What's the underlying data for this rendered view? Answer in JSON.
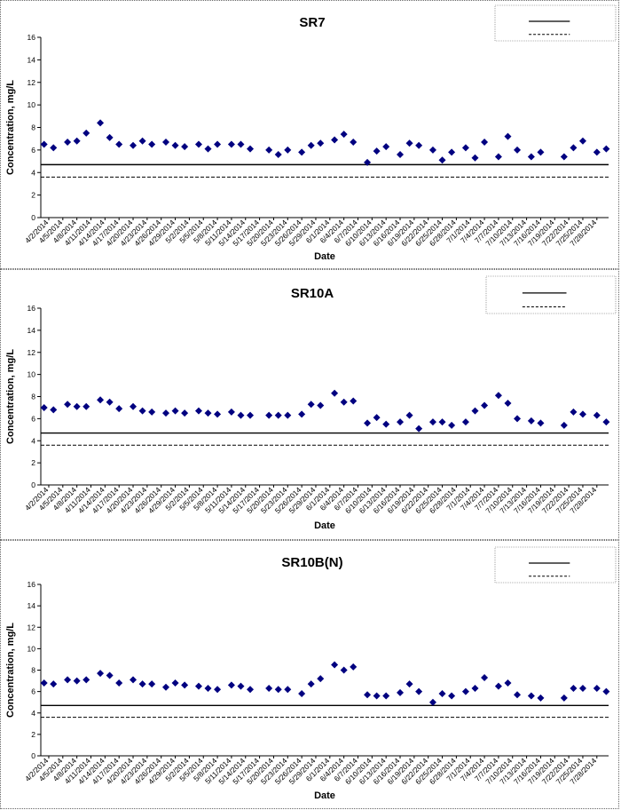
{
  "x_dates": [
    "4/2/2014",
    "4/5/2014",
    "4/8/2014",
    "4/11/2014",
    "4/14/2014",
    "4/17/2014",
    "4/20/2014",
    "4/23/2014",
    "4/26/2014",
    "4/29/2014",
    "5/2/2014",
    "5/5/2014",
    "5/8/2014",
    "5/11/2014",
    "5/14/2014",
    "5/17/2014",
    "5/20/2014",
    "5/23/2014",
    "5/26/2014",
    "5/29/2014",
    "6/1/2014",
    "6/4/2014",
    "6/7/2014",
    "6/10/2014",
    "6/13/2014",
    "6/16/2014",
    "6/19/2014",
    "6/22/2014",
    "6/25/2014",
    "6/28/2014",
    "7/1/2014",
    "7/4/2014",
    "7/7/2014",
    "7/10/2014",
    "7/13/2014",
    "7/16/2014",
    "7/19/2014",
    "7/22/2014",
    "7/25/2014",
    "7/28/2014"
  ],
  "chart_data": [
    {
      "type": "scatter",
      "title": "SR7",
      "xlabel": "Date",
      "ylabel": "Concentration, mg/L",
      "ylim": [
        0,
        16
      ],
      "yticks": [
        0,
        2,
        4,
        6,
        8,
        10,
        12,
        14,
        16
      ],
      "reference_lines": [
        {
          "style": "solid",
          "y": 4.7
        },
        {
          "style": "dashed",
          "y": 3.6
        }
      ],
      "legend": {
        "placement": "top-right"
      },
      "marker_color": "#000080",
      "points": [
        [
          "4/1/2014",
          6.5
        ],
        [
          "4/3/2014",
          6.2
        ],
        [
          "4/6/2014",
          6.7
        ],
        [
          "4/8/2014",
          6.8
        ],
        [
          "4/10/2014",
          7.5
        ],
        [
          "4/13/2014",
          8.4
        ],
        [
          "4/15/2014",
          7.1
        ],
        [
          "4/17/2014",
          6.5
        ],
        [
          "4/20/2014",
          6.4
        ],
        [
          "4/22/2014",
          6.8
        ],
        [
          "4/24/2014",
          6.5
        ],
        [
          "4/27/2014",
          6.7
        ],
        [
          "4/29/2014",
          6.4
        ],
        [
          "5/1/2014",
          6.3
        ],
        [
          "5/4/2014",
          6.5
        ],
        [
          "5/6/2014",
          6.1
        ],
        [
          "5/8/2014",
          6.5
        ],
        [
          "5/11/2014",
          6.5
        ],
        [
          "5/13/2014",
          6.5
        ],
        [
          "5/15/2014",
          6.1
        ],
        [
          "5/19/2014",
          6.0
        ],
        [
          "5/21/2014",
          5.6
        ],
        [
          "5/23/2014",
          6.0
        ],
        [
          "5/26/2014",
          5.8
        ],
        [
          "5/28/2014",
          6.4
        ],
        [
          "5/30/2014",
          6.6
        ],
        [
          "6/2/2014",
          6.9
        ],
        [
          "6/4/2014",
          7.4
        ],
        [
          "6/6/2014",
          6.7
        ],
        [
          "6/9/2014",
          4.9
        ],
        [
          "6/11/2014",
          5.9
        ],
        [
          "6/13/2014",
          6.3
        ],
        [
          "6/16/2014",
          5.6
        ],
        [
          "6/18/2014",
          6.6
        ],
        [
          "6/20/2014",
          6.4
        ],
        [
          "6/23/2014",
          6.0
        ],
        [
          "6/25/2014",
          5.1
        ],
        [
          "6/27/2014",
          5.8
        ],
        [
          "6/30/2014",
          6.2
        ],
        [
          "7/2/2014",
          5.3
        ],
        [
          "7/4/2014",
          6.7
        ],
        [
          "7/7/2014",
          5.4
        ],
        [
          "7/9/2014",
          7.2
        ],
        [
          "7/11/2014",
          6.0
        ],
        [
          "7/14/2014",
          5.4
        ],
        [
          "7/16/2014",
          5.8
        ],
        [
          "7/21/2014",
          5.4
        ],
        [
          "7/23/2014",
          6.2
        ],
        [
          "7/25/2014",
          6.8
        ],
        [
          "7/28/2014",
          5.8
        ],
        [
          "7/30/2014",
          6.1
        ]
      ]
    },
    {
      "type": "scatter",
      "title": "SR10A",
      "xlabel": "Date",
      "ylabel": "Concentration, mg/L",
      "ylim": [
        0,
        16
      ],
      "yticks": [
        0,
        2,
        4,
        6,
        8,
        10,
        12,
        14,
        16
      ],
      "reference_lines": [
        {
          "style": "solid",
          "y": 4.7
        },
        {
          "style": "dashed",
          "y": 3.6
        }
      ],
      "legend": {
        "placement": "top-right"
      },
      "marker_color": "#000080",
      "points": [
        [
          "4/1/2014",
          7.0
        ],
        [
          "4/3/2014",
          6.8
        ],
        [
          "4/6/2014",
          7.3
        ],
        [
          "4/8/2014",
          7.1
        ],
        [
          "4/10/2014",
          7.1
        ],
        [
          "4/13/2014",
          7.7
        ],
        [
          "4/15/2014",
          7.5
        ],
        [
          "4/17/2014",
          6.9
        ],
        [
          "4/20/2014",
          7.1
        ],
        [
          "4/22/2014",
          6.7
        ],
        [
          "4/24/2014",
          6.6
        ],
        [
          "4/27/2014",
          6.5
        ],
        [
          "4/29/2014",
          6.7
        ],
        [
          "5/1/2014",
          6.5
        ],
        [
          "5/4/2014",
          6.7
        ],
        [
          "5/6/2014",
          6.5
        ],
        [
          "5/8/2014",
          6.4
        ],
        [
          "5/11/2014",
          6.6
        ],
        [
          "5/13/2014",
          6.3
        ],
        [
          "5/15/2014",
          6.3
        ],
        [
          "5/19/2014",
          6.3
        ],
        [
          "5/21/2014",
          6.3
        ],
        [
          "5/23/2014",
          6.3
        ],
        [
          "5/26/2014",
          6.4
        ],
        [
          "5/28/2014",
          7.3
        ],
        [
          "5/30/2014",
          7.2
        ],
        [
          "6/2/2014",
          8.3
        ],
        [
          "6/4/2014",
          7.5
        ],
        [
          "6/6/2014",
          7.6
        ],
        [
          "6/9/2014",
          5.6
        ],
        [
          "6/11/2014",
          6.1
        ],
        [
          "6/13/2014",
          5.5
        ],
        [
          "6/16/2014",
          5.7
        ],
        [
          "6/18/2014",
          6.3
        ],
        [
          "6/20/2014",
          5.1
        ],
        [
          "6/23/2014",
          5.7
        ],
        [
          "6/25/2014",
          5.7
        ],
        [
          "6/27/2014",
          5.4
        ],
        [
          "6/30/2014",
          5.7
        ],
        [
          "7/2/2014",
          6.7
        ],
        [
          "7/4/2014",
          7.2
        ],
        [
          "7/7/2014",
          8.1
        ],
        [
          "7/9/2014",
          7.4
        ],
        [
          "7/11/2014",
          6.0
        ],
        [
          "7/14/2014",
          5.8
        ],
        [
          "7/16/2014",
          5.6
        ],
        [
          "7/21/2014",
          5.4
        ],
        [
          "7/23/2014",
          6.6
        ],
        [
          "7/25/2014",
          6.4
        ],
        [
          "7/28/2014",
          6.3
        ],
        [
          "7/30/2014",
          5.7
        ]
      ]
    },
    {
      "type": "scatter",
      "title": "SR10B(N)",
      "xlabel": "Date",
      "ylabel": "Concentration, mg/L",
      "ylim": [
        0,
        16
      ],
      "yticks": [
        0,
        2,
        4,
        6,
        8,
        10,
        12,
        14,
        16
      ],
      "reference_lines": [
        {
          "style": "solid",
          "y": 4.7
        },
        {
          "style": "dashed",
          "y": 3.6
        }
      ],
      "legend": {
        "placement": "top-right"
      },
      "marker_color": "#000080",
      "points": [
        [
          "4/1/2014",
          6.8
        ],
        [
          "4/3/2014",
          6.7
        ],
        [
          "4/6/2014",
          7.1
        ],
        [
          "4/8/2014",
          7.0
        ],
        [
          "4/10/2014",
          7.1
        ],
        [
          "4/13/2014",
          7.7
        ],
        [
          "4/15/2014",
          7.5
        ],
        [
          "4/17/2014",
          6.8
        ],
        [
          "4/20/2014",
          7.1
        ],
        [
          "4/22/2014",
          6.7
        ],
        [
          "4/24/2014",
          6.7
        ],
        [
          "4/27/2014",
          6.4
        ],
        [
          "4/29/2014",
          6.8
        ],
        [
          "5/1/2014",
          6.6
        ],
        [
          "5/4/2014",
          6.5
        ],
        [
          "5/6/2014",
          6.3
        ],
        [
          "5/8/2014",
          6.2
        ],
        [
          "5/11/2014",
          6.6
        ],
        [
          "5/13/2014",
          6.5
        ],
        [
          "5/15/2014",
          6.2
        ],
        [
          "5/19/2014",
          6.3
        ],
        [
          "5/21/2014",
          6.2
        ],
        [
          "5/23/2014",
          6.2
        ],
        [
          "5/26/2014",
          5.8
        ],
        [
          "5/28/2014",
          6.7
        ],
        [
          "5/30/2014",
          7.2
        ],
        [
          "6/2/2014",
          8.5
        ],
        [
          "6/4/2014",
          8.0
        ],
        [
          "6/6/2014",
          8.3
        ],
        [
          "6/9/2014",
          5.7
        ],
        [
          "6/11/2014",
          5.6
        ],
        [
          "6/13/2014",
          5.6
        ],
        [
          "6/16/2014",
          5.9
        ],
        [
          "6/18/2014",
          6.7
        ],
        [
          "6/20/2014",
          6.0
        ],
        [
          "6/23/2014",
          5.0
        ],
        [
          "6/25/2014",
          5.8
        ],
        [
          "6/27/2014",
          5.6
        ],
        [
          "6/30/2014",
          6.0
        ],
        [
          "7/2/2014",
          6.3
        ],
        [
          "7/4/2014",
          7.3
        ],
        [
          "7/7/2014",
          6.5
        ],
        [
          "7/9/2014",
          6.8
        ],
        [
          "7/11/2014",
          5.7
        ],
        [
          "7/14/2014",
          5.6
        ],
        [
          "7/16/2014",
          5.4
        ],
        [
          "7/21/2014",
          5.4
        ],
        [
          "7/23/2014",
          6.3
        ],
        [
          "7/25/2014",
          6.3
        ],
        [
          "7/28/2014",
          6.3
        ],
        [
          "7/30/2014",
          6.0
        ]
      ]
    }
  ]
}
